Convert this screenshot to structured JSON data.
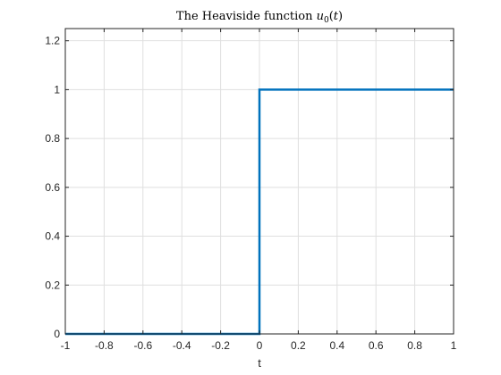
{
  "chart_data": {
    "type": "line",
    "title": {
      "prefix": "The Heaviside function ",
      "fn": "u",
      "sub": "0",
      "open": "(",
      "arg": "t",
      "close": ")"
    },
    "xlabel": "t",
    "ylabel": "",
    "xlim": [
      -1,
      1
    ],
    "ylim": [
      0,
      1.25
    ],
    "xticks": [
      -1,
      -0.8,
      -0.6,
      -0.4,
      -0.2,
      0,
      0.2,
      0.4,
      0.6,
      0.8,
      1
    ],
    "xtick_labels": [
      "-1",
      "-0.8",
      "-0.6",
      "-0.4",
      "-0.2",
      "0",
      "0.2",
      "0.4",
      "0.6",
      "0.8",
      "1"
    ],
    "yticks": [
      0,
      0.2,
      0.4,
      0.6,
      0.8,
      1,
      1.2
    ],
    "ytick_labels": [
      "0",
      "0.2",
      "0.4",
      "0.6",
      "0.8",
      "1",
      "1.2"
    ],
    "grid": true,
    "box": true,
    "series": [
      {
        "x": [
          -1,
          0,
          0,
          1
        ],
        "y": [
          0,
          0,
          1,
          1
        ],
        "color": "#0072BD"
      }
    ],
    "colors": {
      "axis": "#262626",
      "grid": "#dfdfdf",
      "background": "#ffffff"
    }
  }
}
